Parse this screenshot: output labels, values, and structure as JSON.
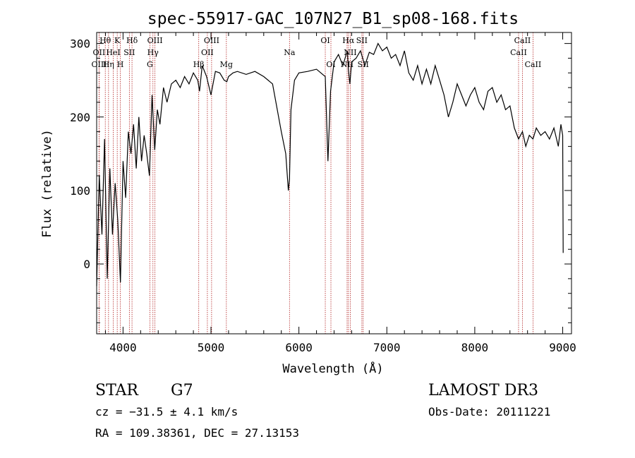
{
  "chart_data": {
    "type": "line",
    "title": "spec-55917-GAC_107N27_B1_sp08-168.fits",
    "xlabel": "Wavelength (Å)",
    "ylabel": "Flux (relative)",
    "xlim": [
      3700,
      9100
    ],
    "ylim": [
      -95,
      315
    ],
    "xticks": [
      4000,
      5000,
      6000,
      7000,
      8000,
      9000
    ],
    "yticks": [
      0,
      100,
      200,
      300
    ],
    "series": [
      {
        "name": "spectrum",
        "x": [
          3700,
          3730,
          3760,
          3790,
          3820,
          3850,
          3880,
          3910,
          3940,
          3970,
          4000,
          4030,
          4060,
          4090,
          4120,
          4150,
          4180,
          4210,
          4240,
          4270,
          4300,
          4330,
          4360,
          4390,
          4420,
          4460,
          4500,
          4550,
          4600,
          4650,
          4700,
          4750,
          4800,
          4850,
          4870,
          4900,
          4950,
          5000,
          5050,
          5100,
          5150,
          5180,
          5200,
          5250,
          5300,
          5400,
          5500,
          5600,
          5700,
          5800,
          5850,
          5880,
          5893,
          5910,
          5950,
          6000,
          6100,
          6200,
          6300,
          6330,
          6360,
          6400,
          6450,
          6500,
          6550,
          6563,
          6580,
          6600,
          6650,
          6700,
          6750,
          6800,
          6850,
          6900,
          6950,
          7000,
          7050,
          7100,
          7150,
          7200,
          7250,
          7300,
          7350,
          7400,
          7450,
          7500,
          7550,
          7600,
          7650,
          7700,
          7750,
          7800,
          7850,
          7900,
          7950,
          8000,
          8050,
          8100,
          8150,
          8200,
          8250,
          8300,
          8350,
          8400,
          8450,
          8498,
          8520,
          8542,
          8580,
          8620,
          8662,
          8700,
          8750,
          8800,
          8850,
          8900,
          8950,
          8980,
          9000,
          9005
        ],
        "y": [
          -30,
          120,
          40,
          170,
          -20,
          130,
          40,
          110,
          60,
          -25,
          140,
          90,
          180,
          150,
          190,
          130,
          200,
          140,
          175,
          150,
          120,
          230,
          155,
          210,
          190,
          240,
          220,
          245,
          250,
          240,
          255,
          245,
          260,
          250,
          235,
          270,
          255,
          230,
          262,
          260,
          250,
          248,
          255,
          260,
          262,
          258,
          262,
          255,
          245,
          180,
          150,
          100,
          115,
          210,
          250,
          260,
          262,
          265,
          255,
          140,
          235,
          275,
          285,
          270,
          290,
          265,
          245,
          275,
          280,
          290,
          270,
          288,
          285,
          300,
          290,
          295,
          280,
          285,
          270,
          290,
          260,
          250,
          270,
          245,
          265,
          245,
          270,
          250,
          230,
          200,
          220,
          245,
          230,
          215,
          230,
          240,
          220,
          210,
          235,
          240,
          220,
          230,
          210,
          215,
          185,
          170,
          175,
          180,
          160,
          175,
          170,
          185,
          175,
          180,
          170,
          185,
          160,
          190,
          175,
          15
        ]
      }
    ],
    "line_markers": [
      {
        "label": "Hθ",
        "x": 3798,
        "row": 0
      },
      {
        "label": "OII",
        "x": 3727,
        "row": 1
      },
      {
        "label": "OIII",
        "x": 3728,
        "row": 2
      },
      {
        "label": "K",
        "x": 3934,
        "row": 0
      },
      {
        "label": "HeI",
        "x": 3889,
        "row": 1
      },
      {
        "label": "Hη",
        "x": 3835,
        "row": 2
      },
      {
        "label": "Hδ",
        "x": 4102,
        "row": 0
      },
      {
        "label": "SII",
        "x": 4072,
        "row": 1
      },
      {
        "label": "H",
        "x": 3969,
        "row": 2
      },
      {
        "label": "OIII",
        "x": 4363,
        "row": 0
      },
      {
        "label": "Hγ",
        "x": 4340,
        "row": 1
      },
      {
        "label": "G",
        "x": 4305,
        "row": 2
      },
      {
        "label": "OIII",
        "x": 5007,
        "row": 0
      },
      {
        "label": "OII",
        "x": 4959,
        "row": 1
      },
      {
        "label": "Hβ",
        "x": 4861,
        "row": 2
      },
      {
        "label": "Mg",
        "x": 5175,
        "row": 2
      },
      {
        "label": "Na",
        "x": 5893,
        "row": 1
      },
      {
        "label": "OI",
        "x": 6300,
        "row": 0
      },
      {
        "label": "OI",
        "x": 6364,
        "row": 2
      },
      {
        "label": "Hα",
        "x": 6563,
        "row": 0
      },
      {
        "label": "NII",
        "x": 6548,
        "row": 2
      },
      {
        "label": "SII",
        "x": 6716,
        "row": 0
      },
      {
        "label": "NII",
        "x": 6584,
        "row": 1
      },
      {
        "label": "SII",
        "x": 6731,
        "row": 2
      },
      {
        "label": "CaII",
        "x": 8542,
        "row": 0
      },
      {
        "label": "CaII",
        "x": 8498,
        "row": 1
      },
      {
        "label": "CaII",
        "x": 8662,
        "row": 2
      }
    ]
  },
  "info": {
    "class": "STAR",
    "subclass": "G7",
    "survey": "LAMOST DR3",
    "cz": "cz = −31.5 ± 4.1 km/s",
    "obs_date": "Obs-Date: 20111221",
    "radec": "RA = 109.38361, DEC =  27.13153"
  },
  "colors": {
    "marker": "#b22222",
    "axis": "#000000",
    "line": "#000000"
  }
}
